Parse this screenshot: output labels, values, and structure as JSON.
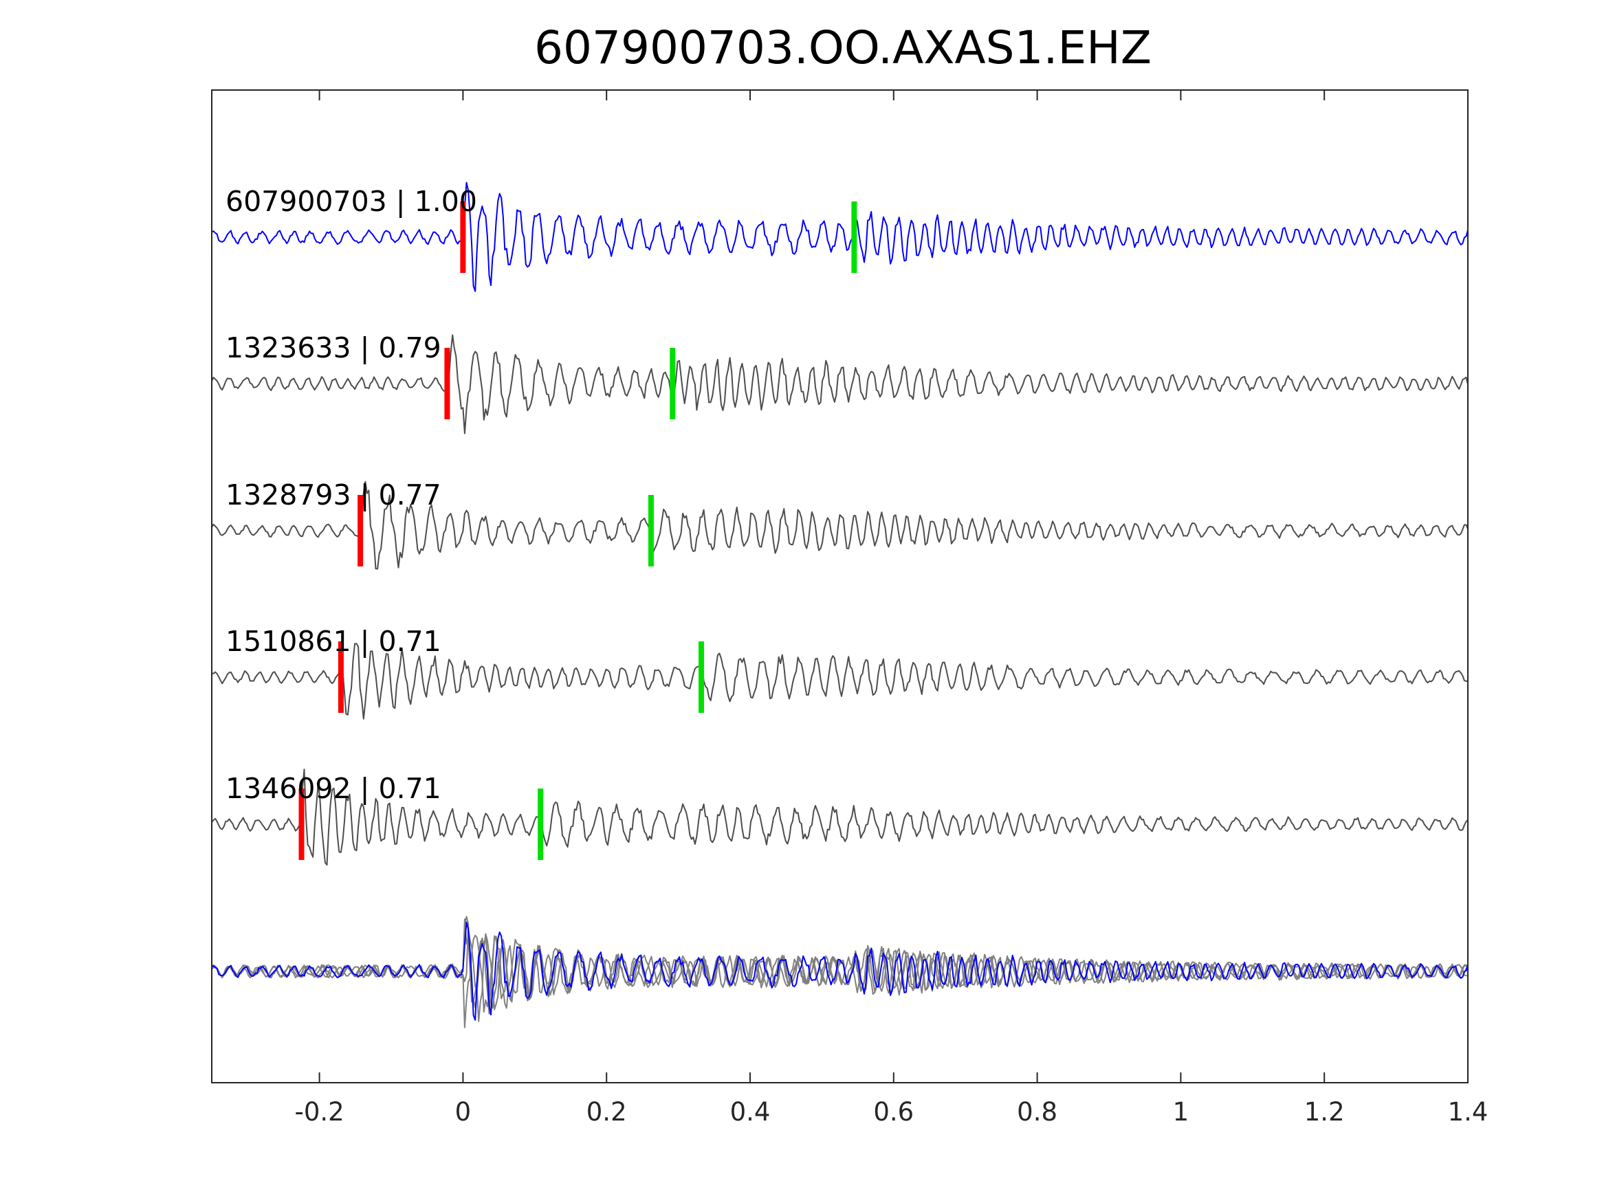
{
  "chart_data": {
    "type": "line",
    "title": "607900703.OO.AXAS1.EHZ",
    "xlabel": "",
    "ylabel": "",
    "xlim": [
      -0.35,
      1.4
    ],
    "xticks": [
      -0.2,
      0,
      0.2,
      0.4,
      0.6,
      0.8,
      1,
      1.2,
      1.4
    ],
    "xtick_labels": [
      "-0.2",
      "0",
      "0.2",
      "0.4",
      "0.6",
      "0.8",
      "1",
      "1.2",
      "1.4"
    ],
    "grid": false,
    "legend": "none",
    "colors": {
      "reference": "#0000ff",
      "neighbor": "#4d4d4d",
      "overlay": "#808080",
      "p_pick": "#ff0000",
      "s_pick": "#00e000"
    },
    "series": [
      {
        "name": "607900703",
        "label": "607900703 | 1.00",
        "correlation": 1.0,
        "p_pick": 0.0,
        "s_pick": 0.545,
        "onset": 0.0,
        "amp": 1.0
      },
      {
        "name": "1323633",
        "label": "1323633 | 0.79",
        "correlation": 0.79,
        "p_pick": -0.022,
        "s_pick": 0.292,
        "onset": -0.022,
        "amp": 0.95
      },
      {
        "name": "1328793",
        "label": "1328793 | 0.77",
        "correlation": 0.77,
        "p_pick": -0.143,
        "s_pick": 0.262,
        "onset": -0.143,
        "amp": 0.9
      },
      {
        "name": "1510861",
        "label": "1510861 | 0.71",
        "correlation": 0.71,
        "p_pick": -0.17,
        "s_pick": 0.332,
        "onset": -0.17,
        "amp": 0.9
      },
      {
        "name": "1346092",
        "label": "1346092 | 0.71",
        "correlation": 0.71,
        "p_pick": -0.225,
        "s_pick": 0.108,
        "onset": -0.225,
        "amp": 0.95
      }
    ],
    "overlay": {
      "description_shown": false,
      "aligned_traces": 5
    }
  }
}
